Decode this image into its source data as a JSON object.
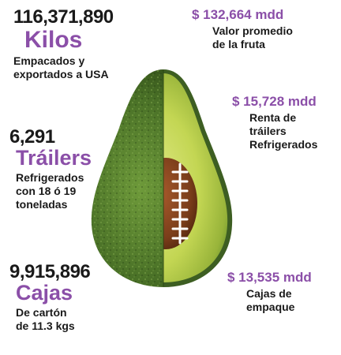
{
  "left_stats": [
    {
      "number": "116,371,890",
      "unit": "Kilos",
      "lines": [
        "Empacados y",
        "exportados a USA"
      ]
    },
    {
      "number": "6,291",
      "unit": "Tráilers",
      "lines": [
        "Refrigerados",
        "con 18 ó 19",
        "toneladas"
      ]
    },
    {
      "number": "9,915,896",
      "unit": "Cajas",
      "lines": [
        "De cartón",
        "de 11.3 kgs"
      ]
    }
  ],
  "right_stats": [
    {
      "amount": "$ 132,664 mdd",
      "lines": [
        "Valor promedio",
        "de la fruta"
      ]
    },
    {
      "amount": "$ 15,728 mdd",
      "lines": [
        "Renta de",
        "tráilers",
        "Refrigerados"
      ]
    },
    {
      "amount": "$ 13,535 mdd",
      "lines": [
        "Cajas de",
        "empaque"
      ]
    }
  ],
  "colors": {
    "accent_purple": "#8b4fa8",
    "avocado_skin": "#3d5e22",
    "avocado_flesh": "#b8cf4a",
    "seed": "#7a3f1c"
  },
  "illustration": "avocado-football-icon"
}
